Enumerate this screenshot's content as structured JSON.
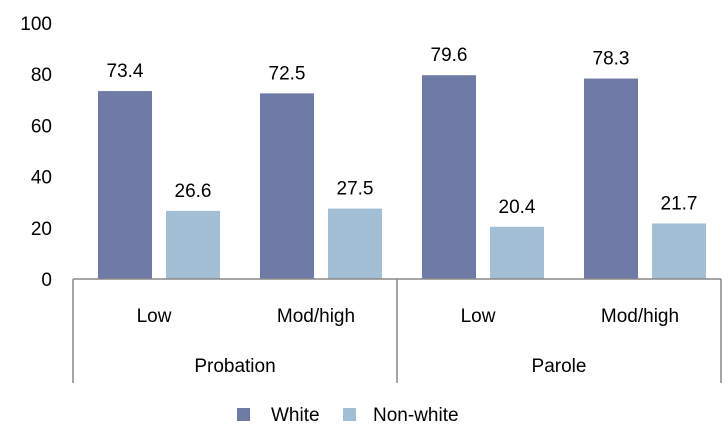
{
  "chart_data": {
    "type": "bar",
    "groups": [
      {
        "label": "Probation",
        "categories": [
          "Low",
          "Mod/high"
        ]
      },
      {
        "label": "Parole",
        "categories": [
          "Low",
          "Mod/high"
        ]
      }
    ],
    "categories": [
      "Low",
      "Mod/high",
      "Low",
      "Mod/high"
    ],
    "series": [
      {
        "name": "White",
        "color": "#6f7aa6",
        "values": [
          73.4,
          72.5,
          79.6,
          78.3
        ]
      },
      {
        "name": "Non-white",
        "color": "#a3bfd6",
        "values": [
          26.6,
          27.5,
          20.4,
          21.7
        ]
      }
    ],
    "ylim": [
      0,
      100
    ],
    "yticks": [
      0,
      20,
      40,
      60,
      80,
      100
    ],
    "grid": false,
    "legend_position": "bottom"
  }
}
